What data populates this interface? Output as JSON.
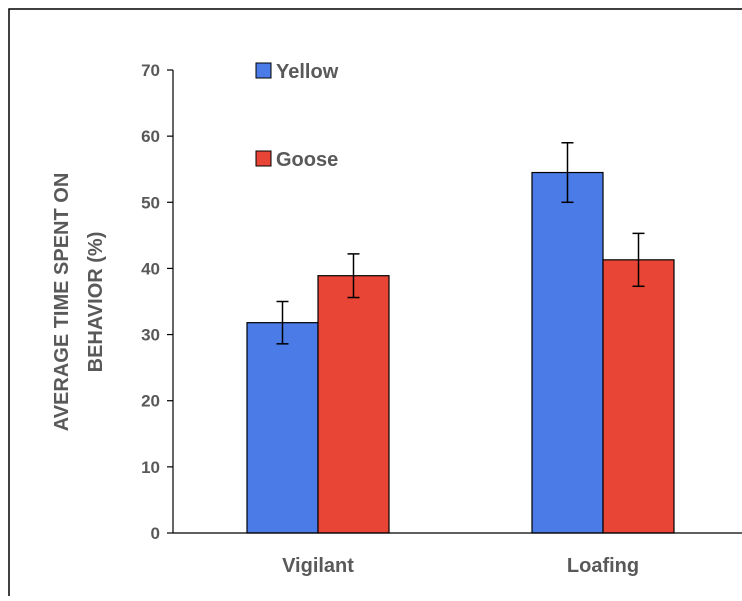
{
  "chart_data": {
    "type": "bar",
    "title": "",
    "ylabel_lines": [
      "AVERAGE TIME SPENT ON",
      "BEHAVIOR (%)"
    ],
    "xlabel": "",
    "ylim": [
      0,
      70
    ],
    "yticks": [
      0,
      10,
      20,
      30,
      40,
      50,
      60,
      70
    ],
    "categories": [
      "Vigilant",
      "Loafing"
    ],
    "series": [
      {
        "name": "Yellow",
        "color": "#4a7be6",
        "values": [
          31.8,
          54.5
        ],
        "errors": [
          3.2,
          4.5
        ]
      },
      {
        "name": "Goose",
        "color": "#e84536",
        "values": [
          38.9,
          41.3
        ],
        "errors": [
          3.3,
          4.0
        ]
      }
    ],
    "grid": false,
    "legend_position": "top-left"
  }
}
